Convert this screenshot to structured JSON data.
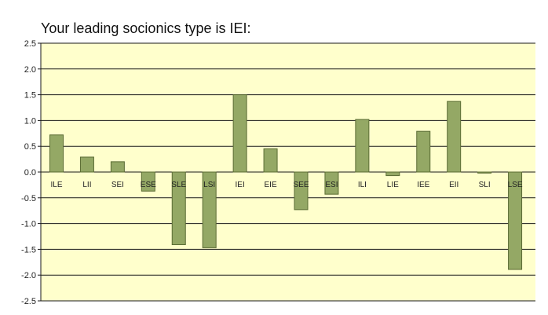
{
  "chart_data": {
    "type": "bar",
    "title": "Your leading socionics type is IEI:",
    "xlabel": "",
    "ylabel": "",
    "categories": [
      "ILE",
      "LII",
      "SEI",
      "ESE",
      "SLE",
      "LSI",
      "IEI",
      "EIE",
      "SEE",
      "ESI",
      "ILI",
      "LIE",
      "IEE",
      "EII",
      "SLI",
      "LSE"
    ],
    "values": [
      0.72,
      0.29,
      0.2,
      -0.37,
      -1.41,
      -1.47,
      1.5,
      0.45,
      -0.73,
      -0.43,
      1.02,
      -0.07,
      0.79,
      1.37,
      -0.02,
      -1.89
    ],
    "ylim": [
      -2.5,
      2.5
    ],
    "yticks": [
      "2.5",
      "2.0",
      "1.5",
      "1.0",
      "0.5",
      "0.0",
      "-0.5",
      "-1.0",
      "-1.5",
      "-2.0",
      "-2.5"
    ],
    "grid": true,
    "legend": "none",
    "colors": {
      "plot_bg": "#ffffcc",
      "bar_fill": "#94a865",
      "bar_stroke": "#5a6b34",
      "grid": "#1a1a1a"
    }
  }
}
